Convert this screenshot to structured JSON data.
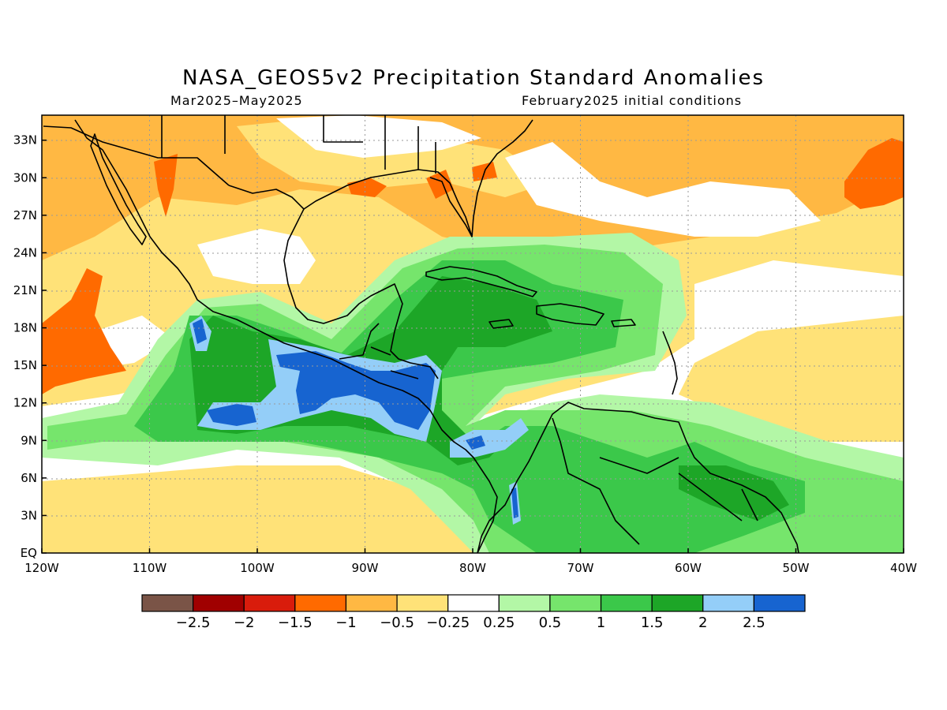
{
  "figure": {
    "title": "NASA_GEOS5v2 Precipitation Standard Anomalies",
    "period": "Mar2025–May2025",
    "init": "February2025 initial conditions"
  },
  "axes": {
    "lon_labels": [
      "120W",
      "110W",
      "100W",
      "90W",
      "80W",
      "70W",
      "60W",
      "50W",
      "40W"
    ],
    "lat_labels": [
      "EQ",
      "3N",
      "6N",
      "9N",
      "12N",
      "15N",
      "18N",
      "21N",
      "24N",
      "27N",
      "30N",
      "33N"
    ],
    "lon_range": [
      -120,
      -40
    ],
    "lat_range": [
      0,
      35
    ]
  },
  "colorbar": {
    "bins": [
      {
        "color": "#7a5447",
        "label": ""
      },
      {
        "color": "#a00000",
        "label": "−2.5"
      },
      {
        "color": "#d91c0c",
        "label": "−2"
      },
      {
        "color": "#ff6a00",
        "label": "−1.5"
      },
      {
        "color": "#ffb843",
        "label": "−1"
      },
      {
        "color": "#ffe278",
        "label": "−0.5"
      },
      {
        "color": "#ffffff",
        "label": "−0.25"
      },
      {
        "color": "#b3f7a6",
        "label": "0.25"
      },
      {
        "color": "#76e56c",
        "label": "0.5"
      },
      {
        "color": "#3bc84a",
        "label": "1"
      },
      {
        "color": "#1da627",
        "label": "1.5"
      },
      {
        "color": "#94cef8",
        "label": "2"
      },
      {
        "color": "#1764d0",
        "label": "2.5"
      }
    ]
  },
  "colors": {
    "orange": "#ffb843",
    "yellow": "#ffe278",
    "deep_orange": "#ff6a00",
    "light_green": "#b3f7a6",
    "green": "#76e56c",
    "mid_green": "#3bc84a",
    "dark_green": "#1da627",
    "light_blue": "#94cef8",
    "blue": "#1764d0"
  }
}
